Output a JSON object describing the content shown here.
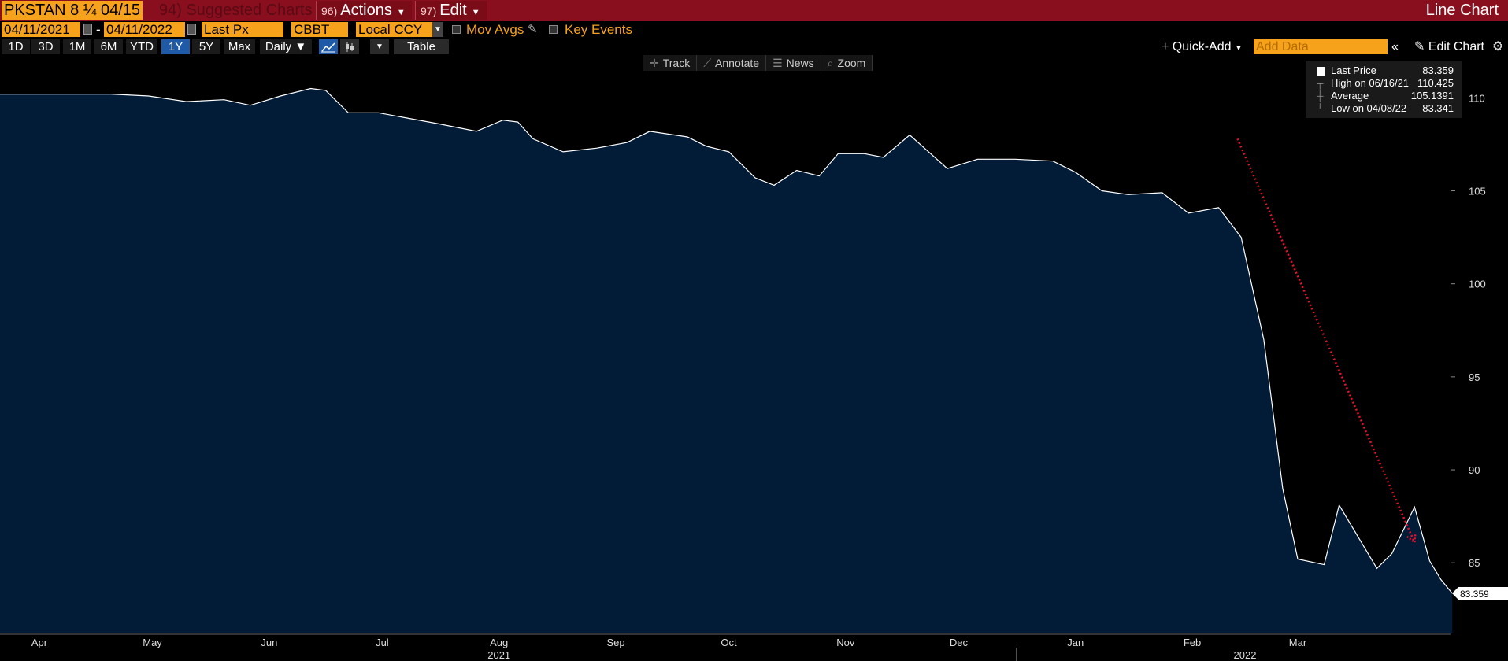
{
  "header": {
    "ticker": "PKSTAN 8 ¼ 04/15",
    "suggested_num": "94)",
    "suggested_label": "Suggested Charts",
    "actions_num": "96)",
    "actions_label": "Actions",
    "edit_num": "97)",
    "edit_label": "Edit",
    "chart_type": "Line Chart"
  },
  "controls": {
    "start_date": "04/11/2021",
    "end_date": "04/11/2022",
    "price_field": "Last Px",
    "source": "CBBT",
    "currency": "Local CCY",
    "mov_avgs": "Mov Avgs",
    "key_events": "Key Events"
  },
  "ranges": [
    "1D",
    "3D",
    "1M",
    "6M",
    "YTD",
    "1Y",
    "5Y",
    "Max"
  ],
  "active_range": "1Y",
  "frequency": "Daily",
  "table_label": "Table",
  "quick_add": "Quick-Add",
  "add_data_placeholder": "Add Data",
  "edit_chart": "Edit Chart",
  "chart_tools": [
    "Track",
    "Annotate",
    "News",
    "Zoom"
  ],
  "legend": {
    "last_label": "Last Price",
    "last_value": "83.359",
    "high_label": "High on 06/16/21",
    "high_value": "110.425",
    "avg_label": "Average",
    "avg_value": "105.1391",
    "low_label": "Low on 04/08/22",
    "low_value": "83.341"
  },
  "colors": {
    "title_bar": "#8a0f1e",
    "field_orange": "#f7a21b",
    "area_fill": "#021c38",
    "line": "#ffffff",
    "arrow": "#e8102a",
    "active_range": "#1e5aa8"
  },
  "chart_data": {
    "type": "area",
    "title": "",
    "xlabel": "",
    "ylabel": "",
    "ylim": [
      81.2,
      112.3
    ],
    "y_ticks": [
      85,
      90,
      95,
      100,
      105,
      110
    ],
    "x_ticks": [
      {
        "label": "Apr",
        "date": "2021-04-01"
      },
      {
        "label": "May",
        "date": "2021-05-01"
      },
      {
        "label": "Jun",
        "date": "2021-06-01"
      },
      {
        "label": "Jul",
        "date": "2021-07-01"
      },
      {
        "label": "Aug",
        "date": "2021-08-01"
      },
      {
        "label": "Sep",
        "date": "2021-09-01"
      },
      {
        "label": "Oct",
        "date": "2021-10-01"
      },
      {
        "label": "Nov",
        "date": "2021-11-01"
      },
      {
        "label": "Dec",
        "date": "2021-12-01"
      },
      {
        "label": "Jan",
        "date": "2022-01-01"
      },
      {
        "label": "Feb",
        "date": "2022-02-01"
      },
      {
        "label": "Mar",
        "date": "2022-03-01"
      }
    ],
    "year_labels": [
      {
        "label": "2021",
        "date": "2021-08-01"
      },
      {
        "label": "2022",
        "date": "2022-02-15"
      }
    ],
    "last_value_label": "83.359",
    "annotation": {
      "type": "arrow",
      "from": {
        "date": "2022-02-13",
        "value": 107.8
      },
      "to": {
        "date": "2022-04-01",
        "value": 86.1
      }
    },
    "series": [
      {
        "x": [
          "2021-04-11",
          "2021-04-20",
          "2021-04-30",
          "2021-05-10",
          "2021-05-20",
          "2021-05-27",
          "2021-06-04",
          "2021-06-12",
          "2021-06-16",
          "2021-06-22",
          "2021-06-30",
          "2021-07-08",
          "2021-07-16",
          "2021-07-26",
          "2021-08-02",
          "2021-08-06",
          "2021-08-10",
          "2021-08-18",
          "2021-08-27",
          "2021-09-04",
          "2021-09-10",
          "2021-09-20",
          "2021-09-25",
          "2021-10-01",
          "2021-10-08",
          "2021-10-13",
          "2021-10-19",
          "2021-10-25",
          "2021-10-30",
          "2021-11-06",
          "2021-11-11",
          "2021-11-18",
          "2021-11-28",
          "2021-12-06",
          "2021-12-16",
          "2021-12-26",
          "2022-01-01",
          "2022-01-08",
          "2022-01-15",
          "2022-01-24",
          "2022-01-31",
          "2022-02-08",
          "2022-02-14",
          "2022-02-20",
          "2022-02-25",
          "2022-03-01",
          "2022-03-08",
          "2022-03-12",
          "2022-03-22",
          "2022-03-26",
          "2022-04-01",
          "2022-04-05",
          "2022-04-08",
          "2022-04-11"
        ],
        "y": [
          110.2,
          110.2,
          110.1,
          109.8,
          109.9,
          109.6,
          110.1,
          110.5,
          110.4,
          109.2,
          109.2,
          108.9,
          108.6,
          108.2,
          108.8,
          108.7,
          107.8,
          107.1,
          107.3,
          107.6,
          108.2,
          107.9,
          107.4,
          107.1,
          105.7,
          105.3,
          106.1,
          105.8,
          107.0,
          107.0,
          106.8,
          108.0,
          106.2,
          106.7,
          106.7,
          106.6,
          106.0,
          105.0,
          104.8,
          104.9,
          103.8,
          104.1,
          102.5,
          97.0,
          89.0,
          85.2,
          84.9,
          88.1,
          84.7,
          85.5,
          88.0,
          85.1,
          84.1,
          83.359
        ]
      }
    ]
  }
}
